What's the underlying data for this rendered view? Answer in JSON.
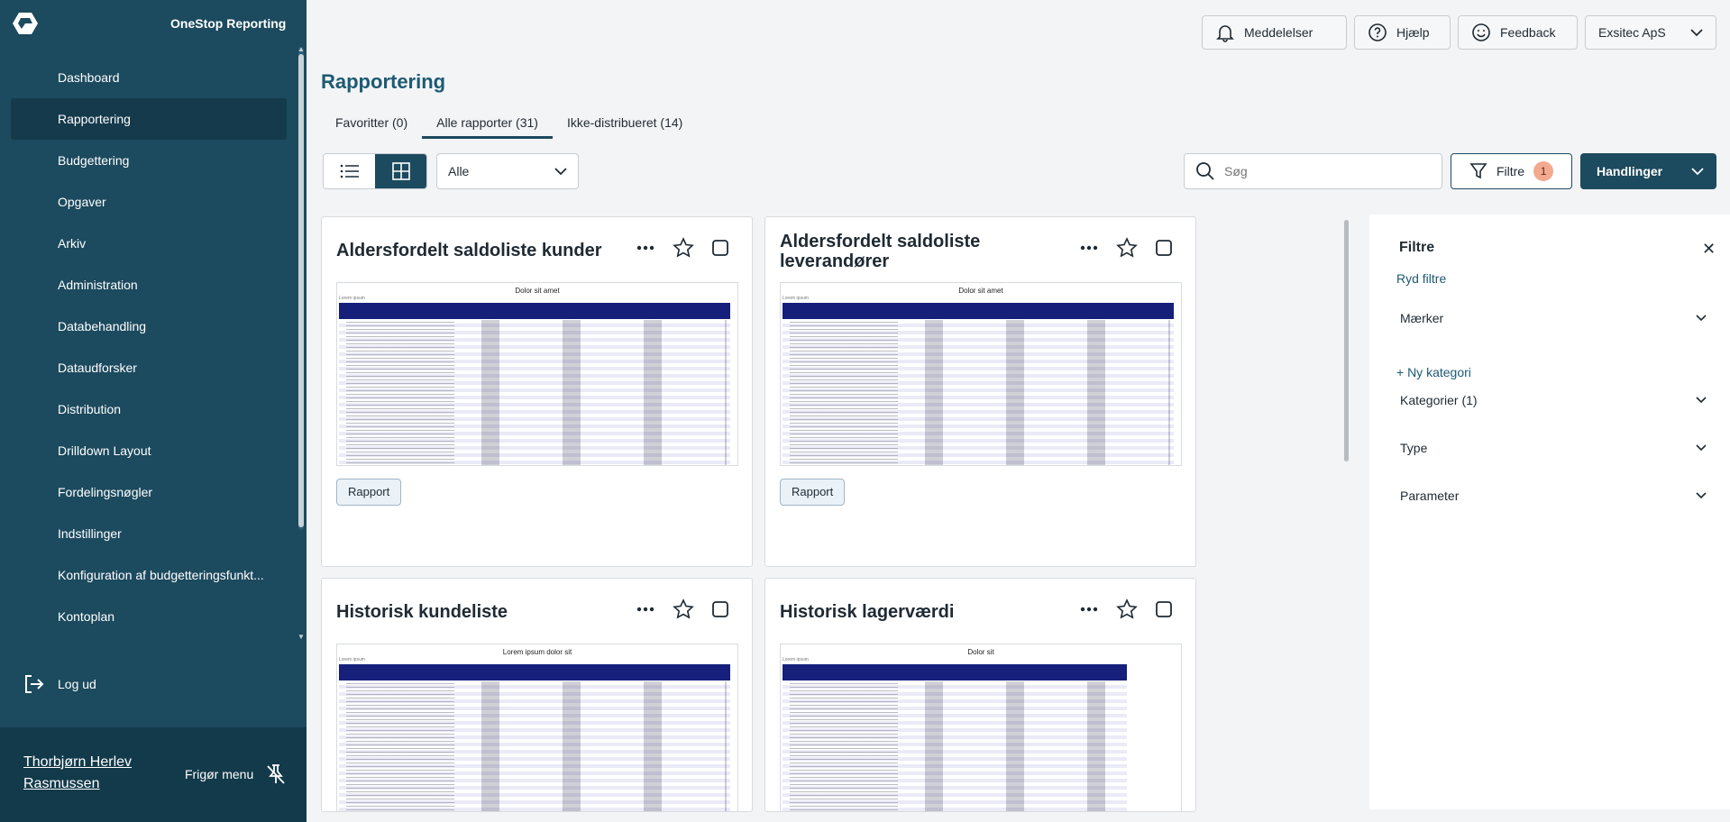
{
  "app": {
    "name": "OneStop Reporting"
  },
  "sidebar": {
    "items": [
      {
        "label": "Dashboard"
      },
      {
        "label": "Rapportering",
        "active": true
      },
      {
        "label": "Budgettering"
      },
      {
        "label": "Opgaver"
      },
      {
        "label": "Arkiv"
      },
      {
        "label": "Administration"
      },
      {
        "label": "Databehandling"
      },
      {
        "label": "Dataudforsker"
      },
      {
        "label": "Distribution"
      },
      {
        "label": "Drilldown Layout"
      },
      {
        "label": "Fordelingsnøgler"
      },
      {
        "label": "Indstillinger"
      },
      {
        "label": "Konfiguration af budgetteringsfunkt..."
      },
      {
        "label": "Kontoplan"
      }
    ],
    "logout": "Log ud",
    "user_name": "Thorbjørn Herlev Rasmussen",
    "unpin": "Frigør menu"
  },
  "topbar": {
    "notifications": "Meddelelser",
    "help": "Hjælp",
    "feedback": "Feedback",
    "company": "Exsitec ApS"
  },
  "page": {
    "title": "Rapportering"
  },
  "tabs": [
    {
      "label": "Favoritter (0)"
    },
    {
      "label": "Alle rapporter (31)",
      "active": true
    },
    {
      "label": "Ikke-distribueret (14)"
    }
  ],
  "toolbar": {
    "select_value": "Alle",
    "search_placeholder": "Søg",
    "filter_label": "Filtre",
    "filter_count": "1",
    "actions_label": "Handlinger"
  },
  "cards": [
    {
      "title": "Aldersfordelt saldoliste kunder",
      "thumb_title": "Dolor sit amet",
      "thumb_sub": "Lorem ipsum",
      "button": "Rapport"
    },
    {
      "title": "Aldersfordelt saldoliste leverandører",
      "thumb_title": "Dolor sit amet",
      "thumb_sub": "Lorem ipsum",
      "button": "Rapport"
    },
    {
      "title": "Historisk kundeliste",
      "thumb_title": "Lorem ipsum dolor sit",
      "thumb_sub": "Lorem ipsum"
    },
    {
      "title": "Historisk lagerværdi",
      "thumb_title": "Dolor sit",
      "thumb_sub": "Lorem ipsum"
    }
  ],
  "filters": {
    "title": "Filtre",
    "clear": "Ryd filtre",
    "tags": "Mærker",
    "new_category": "+ Ny kategori",
    "categories": "Kategorier (1)",
    "type": "Type",
    "parameter": "Parameter"
  }
}
